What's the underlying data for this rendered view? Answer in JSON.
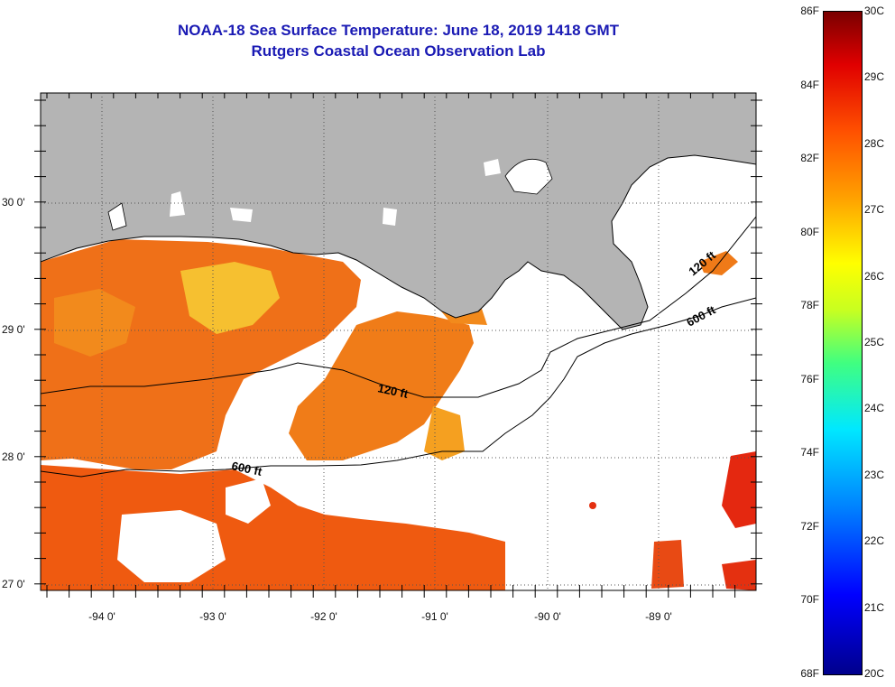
{
  "title_line1": "NOAA-18 Sea Surface Temperature:  June 18, 2019 1418 GMT",
  "title_line2": "Rutgers Coastal Ocean Observation Lab",
  "lat_labels": [
    "30 0'",
    "29 0'",
    "28 0'",
    "27 0'"
  ],
  "lon_labels": [
    "-94 0'",
    "-93 0'",
    "-92 0'",
    "-91 0'",
    "-90 0'",
    "-89 0'"
  ],
  "contours": {
    "c120_a": "120 ft",
    "c120_b": "120 ft",
    "c600_a": "600 ft",
    "c600_b": "600 ft"
  },
  "colorbar": {
    "fahrenheit": [
      "86F",
      "84F",
      "82F",
      "80F",
      "78F",
      "76F",
      "74F",
      "72F",
      "70F",
      "68F"
    ],
    "celsius": [
      "30C",
      "29C",
      "28C",
      "27C",
      "26C",
      "25C",
      "24C",
      "23C",
      "22C",
      "21C",
      "20C"
    ]
  },
  "colors": {
    "land": "#b4b4b4",
    "cloud": "#ffffff",
    "title": "#1a1ab4"
  }
}
